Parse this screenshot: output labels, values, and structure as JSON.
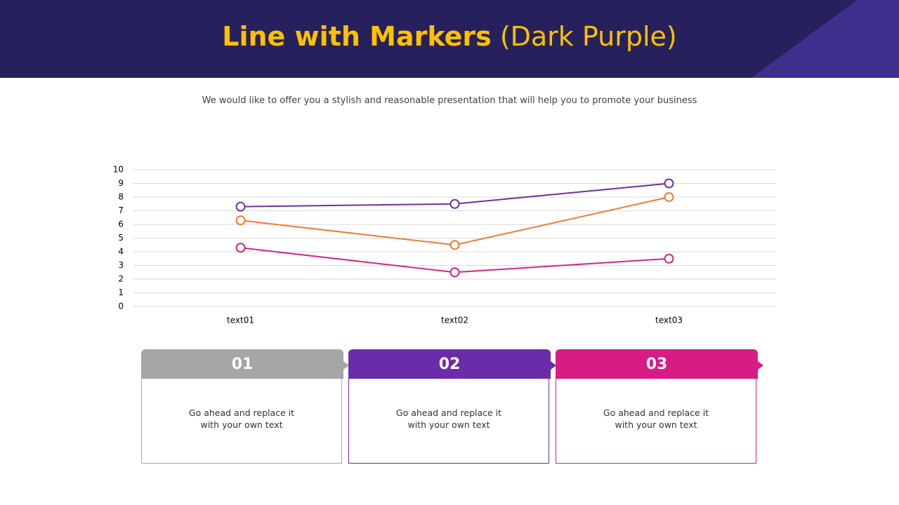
{
  "header": {
    "title_bold": "Line with Markers",
    "title_rest": "(Dark Purple)",
    "subtitle": "We would like to offer you a stylish and reasonable presentation that will help you to promote your business"
  },
  "chart_data": {
    "type": "line",
    "categories": [
      "text01",
      "text02",
      "text03"
    ],
    "series": [
      {
        "color": "#7030a0",
        "values": [
          7.3,
          7.5,
          9.0
        ]
      },
      {
        "color": "#ed7d31",
        "values": [
          6.3,
          4.5,
          8.0
        ]
      },
      {
        "color": "#d6267f",
        "values": [
          4.3,
          2.5,
          3.5
        ]
      }
    ],
    "ylim": [
      0,
      10
    ],
    "yticks": [
      0,
      1,
      2,
      3,
      4,
      5,
      6,
      7,
      8,
      9,
      10
    ],
    "grid": true,
    "markers": true
  },
  "cards": [
    {
      "number": "01",
      "color": "#a6a6a6",
      "lines": [
        "Go ahead and replace it",
        "with  your own text"
      ]
    },
    {
      "number": "02",
      "color": "#6a2ca8",
      "lines": [
        "Go ahead and replace it",
        "with  your own text"
      ]
    },
    {
      "number": "03",
      "color": "#d81b85",
      "lines": [
        "Go ahead and replace it",
        "with  your own text"
      ]
    }
  ]
}
